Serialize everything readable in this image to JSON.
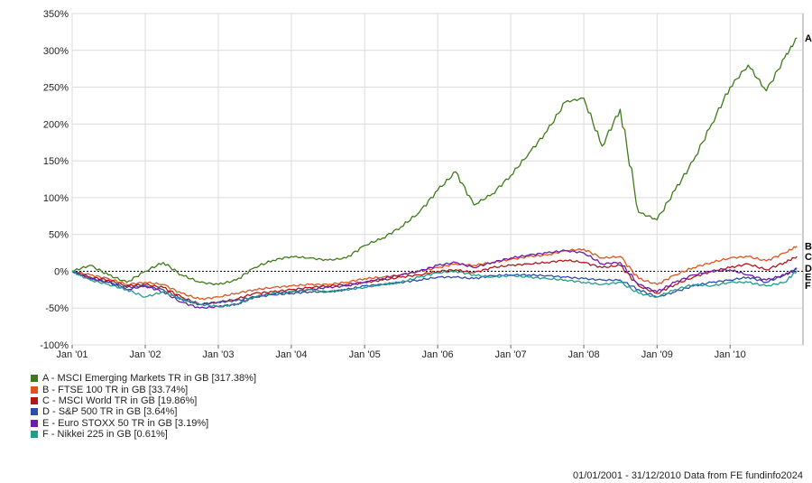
{
  "chart_data": {
    "type": "line",
    "yunit": "%",
    "ylim": [
      -100,
      350
    ],
    "yticks": [
      -100,
      -50,
      0,
      50,
      100,
      150,
      200,
      250,
      300,
      350
    ],
    "ytick_labels": [
      "-100%",
      "-50%",
      "0%",
      "50%",
      "100%",
      "150%",
      "200%",
      "250%",
      "300%",
      "350%"
    ],
    "xlim": [
      "2001-01-01",
      "2010-12-31"
    ],
    "xticks": [
      "Jan '01",
      "Jan '02",
      "Jan '03",
      "Jan '04",
      "Jan '05",
      "Jan '06",
      "Jan '07",
      "Jan '08",
      "Jan '09",
      "Jan '10"
    ],
    "grid": true,
    "legend_position": "bottom-left",
    "x": [
      "2001-01",
      "2001-04",
      "2001-07",
      "2001-10",
      "2002-01",
      "2002-04",
      "2002-07",
      "2002-10",
      "2003-01",
      "2003-04",
      "2003-07",
      "2003-10",
      "2004-01",
      "2004-04",
      "2004-07",
      "2004-10",
      "2005-01",
      "2005-04",
      "2005-07",
      "2005-10",
      "2006-01",
      "2006-04",
      "2006-07",
      "2006-10",
      "2007-01",
      "2007-04",
      "2007-07",
      "2007-10",
      "2008-01",
      "2008-04",
      "2008-07",
      "2008-10",
      "2009-01",
      "2009-04",
      "2009-07",
      "2009-10",
      "2010-01",
      "2010-04",
      "2010-07",
      "2010-10",
      "2010-12"
    ],
    "series": [
      {
        "letter": "A",
        "name": "A - MSCI Emerging Markets TR in GB [317.38%]",
        "color": "#3f7a1a",
        "values": [
          0,
          8,
          -5,
          -15,
          0,
          12,
          -5,
          -15,
          -18,
          -12,
          5,
          15,
          20,
          18,
          15,
          18,
          35,
          45,
          60,
          80,
          110,
          135,
          90,
          105,
          130,
          160,
          190,
          230,
          235,
          170,
          220,
          80,
          70,
          110,
          150,
          200,
          250,
          280,
          245,
          290,
          317
        ]
      },
      {
        "letter": "B",
        "name": "B - FTSE 100 TR in GB [33.74%]",
        "color": "#e0531f",
        "values": [
          0,
          -5,
          -10,
          -18,
          -15,
          -18,
          -30,
          -38,
          -35,
          -30,
          -25,
          -22,
          -20,
          -18,
          -18,
          -15,
          -10,
          -8,
          -5,
          0,
          5,
          10,
          8,
          12,
          16,
          20,
          22,
          28,
          30,
          18,
          20,
          -10,
          -18,
          -5,
          5,
          12,
          18,
          20,
          14,
          25,
          34
        ]
      },
      {
        "letter": "C",
        "name": "C - MSCI World TR in GB [19.86%]",
        "color": "#b01818",
        "values": [
          0,
          -8,
          -12,
          -20,
          -18,
          -22,
          -35,
          -45,
          -42,
          -38,
          -30,
          -28,
          -25,
          -22,
          -20,
          -18,
          -15,
          -12,
          -8,
          -5,
          0,
          2,
          -2,
          5,
          8,
          10,
          12,
          15,
          12,
          5,
          8,
          -20,
          -30,
          -18,
          -8,
          0,
          5,
          10,
          2,
          12,
          20
        ]
      },
      {
        "letter": "D",
        "name": "D - S&P 500 TR in GB [3.64%]",
        "color": "#2a4fa8",
        "values": [
          0,
          -10,
          -15,
          -22,
          -20,
          -25,
          -38,
          -45,
          -42,
          -40,
          -35,
          -32,
          -30,
          -28,
          -28,
          -25,
          -20,
          -18,
          -15,
          -12,
          -8,
          -8,
          -10,
          -6,
          -5,
          -5,
          -6,
          -8,
          -10,
          -12,
          -12,
          -25,
          -35,
          -28,
          -20,
          -15,
          -12,
          -8,
          -15,
          -5,
          4
        ]
      },
      {
        "letter": "E",
        "name": "E - Euro STOXX 50 TR in GB [3.19%]",
        "color": "#6a1ea8",
        "values": [
          0,
          -10,
          -15,
          -25,
          -20,
          -28,
          -42,
          -50,
          -48,
          -45,
          -35,
          -30,
          -28,
          -25,
          -22,
          -20,
          -15,
          -10,
          -5,
          0,
          8,
          12,
          5,
          12,
          18,
          22,
          25,
          28,
          25,
          10,
          12,
          -18,
          -28,
          -15,
          -5,
          0,
          2,
          -5,
          -12,
          -5,
          3
        ]
      },
      {
        "letter": "F",
        "name": "F - Nikkei 225 in GB [0.61%]",
        "color": "#259b8c",
        "values": [
          0,
          -12,
          -18,
          -25,
          -35,
          -28,
          -38,
          -45,
          -48,
          -45,
          -35,
          -30,
          -28,
          -25,
          -28,
          -25,
          -22,
          -18,
          -15,
          -8,
          -2,
          0,
          -5,
          -8,
          -6,
          -8,
          -10,
          -12,
          -15,
          -18,
          -15,
          -30,
          -35,
          -25,
          -18,
          -20,
          -15,
          -15,
          -20,
          -15,
          1
        ]
      }
    ]
  },
  "footer_text": "01/01/2001 - 31/12/2010 Data from FE fundinfo2024"
}
